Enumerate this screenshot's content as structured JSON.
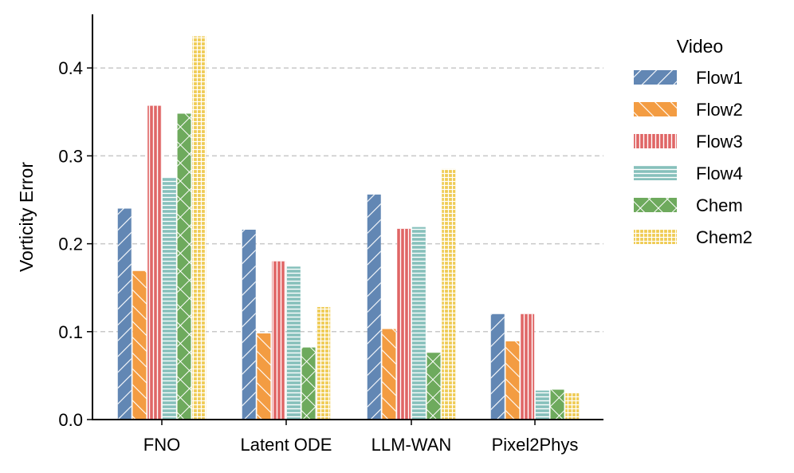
{
  "chart_data": {
    "type": "bar",
    "title": "",
    "xlabel": "",
    "ylabel": "Vorticity Error",
    "ylim": [
      0,
      0.46
    ],
    "yticks": [
      0.0,
      0.1,
      0.2,
      0.3,
      0.4
    ],
    "ytick_labels": [
      "0.0",
      "0.1",
      "0.2",
      "0.3",
      "0.4"
    ],
    "grid": "horizontal dashed",
    "categories": [
      "FNO",
      "Latent ODE",
      "LLM-WAN",
      "Pixel2Phys"
    ],
    "legend_title": "Video",
    "legend_position": "right",
    "series": [
      {
        "name": "Flow1",
        "color": "#6287b4",
        "hatch": "diagonal",
        "values": [
          0.24,
          0.216,
          0.256,
          0.12
        ]
      },
      {
        "name": "Flow2",
        "color": "#f39c42",
        "hatch": "back-diagonal",
        "values": [
          0.169,
          0.098,
          0.103,
          0.089
        ]
      },
      {
        "name": "Flow3",
        "color": "#e06666",
        "hatch": "vertical",
        "values": [
          0.357,
          0.18,
          0.217,
          0.12
        ]
      },
      {
        "name": "Flow4",
        "color": "#86c0bb",
        "hatch": "horizontal",
        "values": [
          0.275,
          0.174,
          0.219,
          0.033
        ]
      },
      {
        "name": "Chem",
        "color": "#6eaa5d",
        "hatch": "cross",
        "values": [
          0.348,
          0.082,
          0.076,
          0.034
        ]
      },
      {
        "name": "Chem2",
        "color": "#efcb53",
        "hatch": "grid",
        "values": [
          0.436,
          0.128,
          0.285,
          0.03
        ]
      }
    ]
  }
}
